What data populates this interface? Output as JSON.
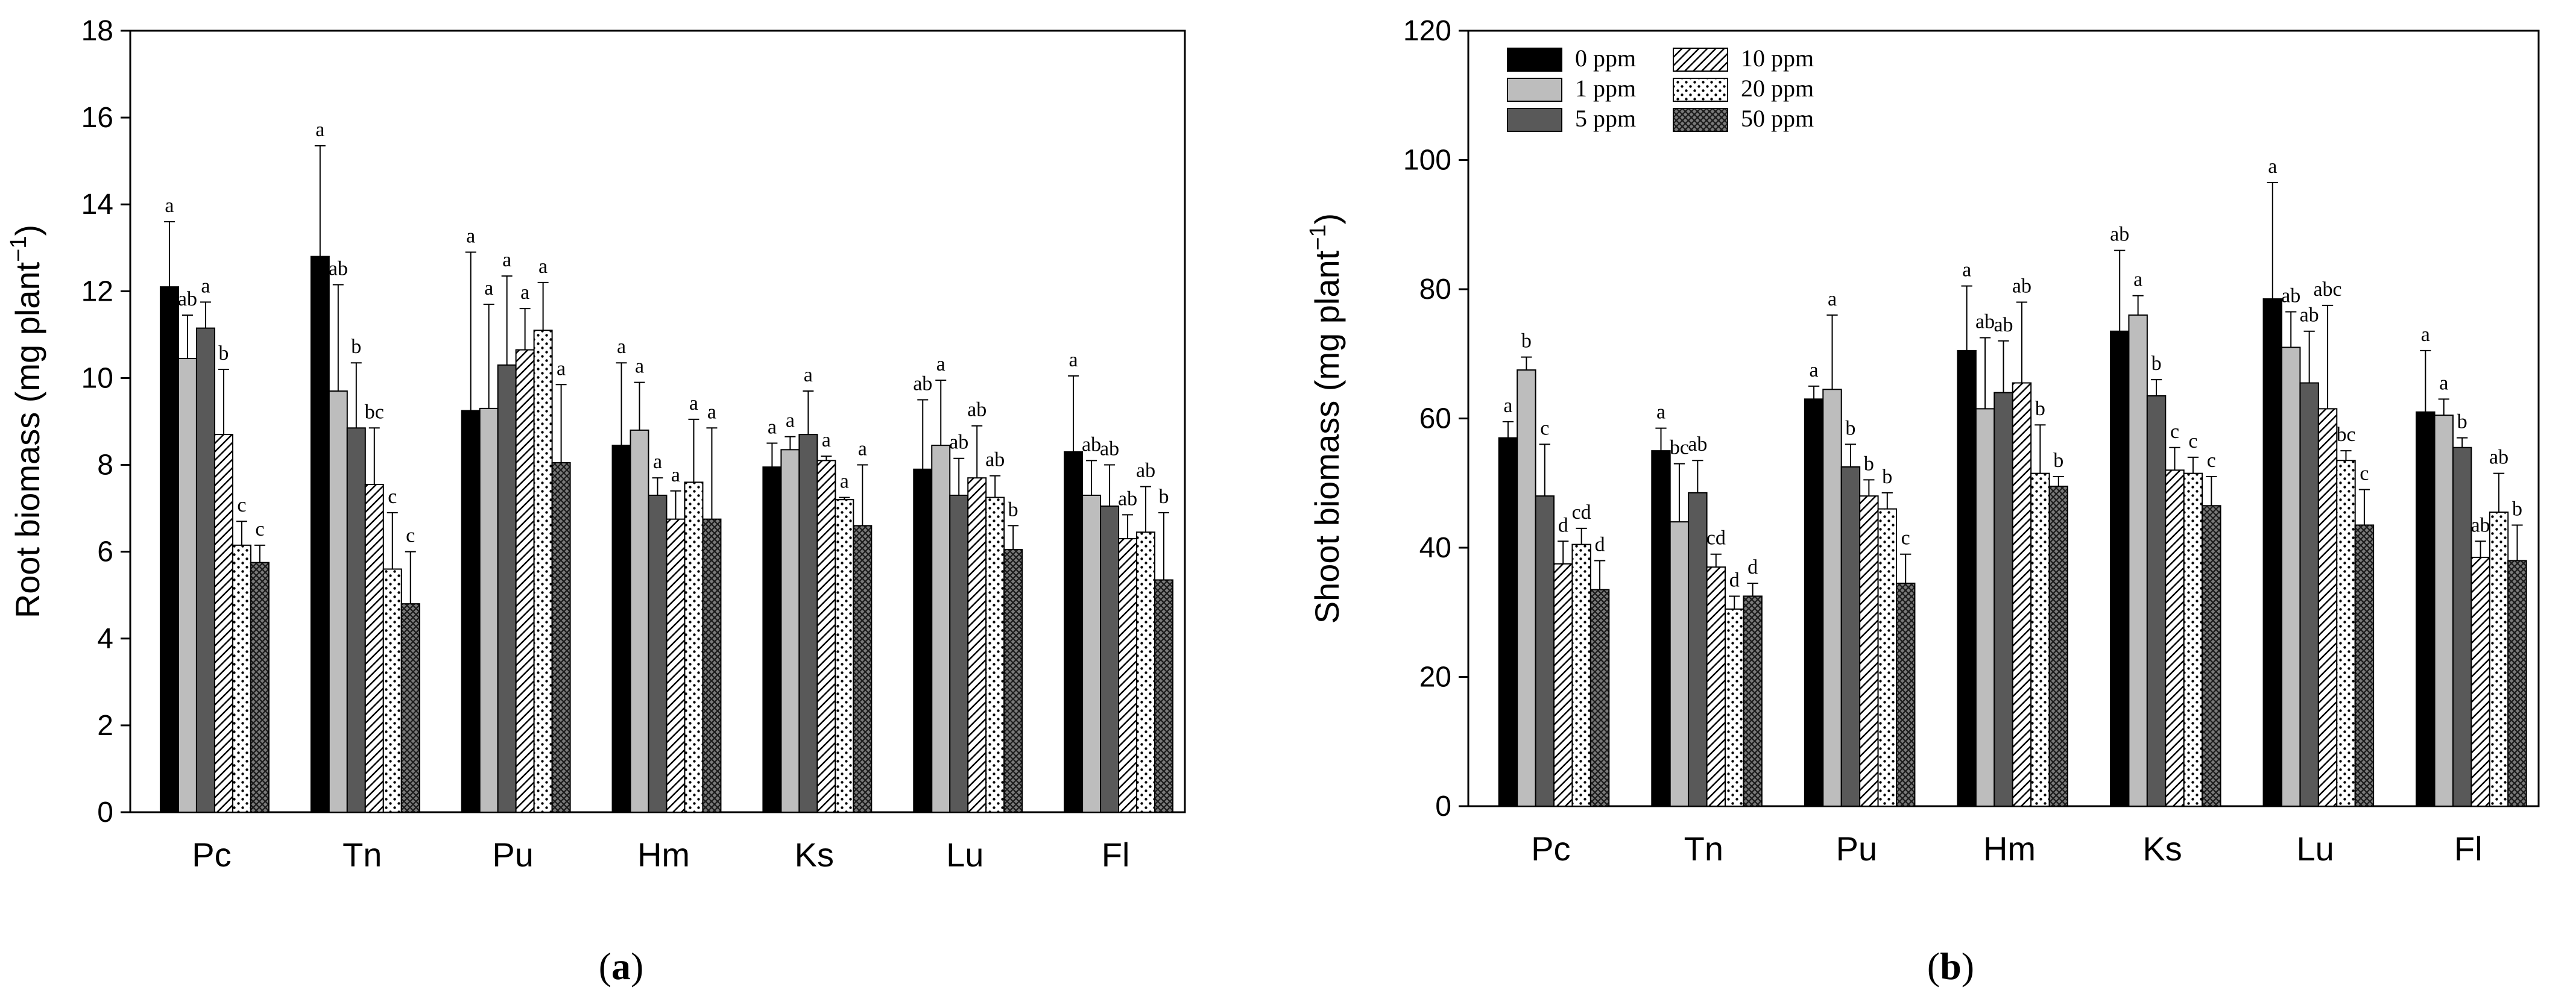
{
  "legend": [
    {
      "label": "0 ppm",
      "pattern": "black"
    },
    {
      "label": "1 ppm",
      "pattern": "lightgray"
    },
    {
      "label": "5 ppm",
      "pattern": "darkgray"
    },
    {
      "label": "10 ppm",
      "pattern": "hatch"
    },
    {
      "label": "20 ppm",
      "pattern": "dots"
    },
    {
      "label": "50 ppm",
      "pattern": "crosshatch"
    }
  ],
  "colors": {
    "black": "#000000",
    "lightgray": "#bdbdbd",
    "darkgray": "#595959",
    "hatch_bg": "#ffffff",
    "dots_bg": "#ffffff",
    "crosshatch_bg": "#7a7a7a"
  },
  "chart_data": [
    {
      "type": "bar",
      "panel": "a",
      "panel_label": {
        "open": "(",
        "letter": "a",
        "close": ")"
      },
      "ylabel": "Root biomass (mg plant",
      "ylabel_sup": "−1",
      "ylabel_close": ")",
      "ylim": [
        0,
        18
      ],
      "yticks": [
        "0",
        "2",
        "4",
        "6",
        "8",
        "10",
        "12",
        "14",
        "16",
        "18"
      ],
      "categories": [
        "Pc",
        "Tn",
        "Pu",
        "Hm",
        "Ks",
        "Lu",
        "Fl"
      ],
      "series": [
        {
          "name": "0 ppm",
          "values": [
            12.1,
            12.8,
            9.25,
            8.45,
            7.95,
            7.9,
            8.3
          ],
          "errors": [
            1.5,
            2.55,
            3.65,
            1.9,
            0.55,
            1.6,
            1.75
          ],
          "letters": [
            "a",
            "a",
            "a",
            "a",
            "a",
            "ab",
            "a"
          ]
        },
        {
          "name": "1 ppm",
          "values": [
            10.45,
            9.7,
            9.3,
            8.8,
            8.35,
            8.45,
            7.3
          ],
          "errors": [
            1.0,
            2.45,
            2.4,
            1.1,
            0.3,
            1.5,
            0.8
          ],
          "letters": [
            "ab",
            "ab",
            "a",
            "a",
            "a",
            "a",
            "ab"
          ]
        },
        {
          "name": "5 ppm",
          "values": [
            11.15,
            8.85,
            10.3,
            7.3,
            8.7,
            7.3,
            7.05
          ],
          "errors": [
            0.6,
            1.5,
            2.05,
            0.4,
            1.0,
            0.85,
            0.95
          ],
          "letters": [
            "a",
            "b",
            "a",
            "a",
            "a",
            "ab",
            "ab"
          ]
        },
        {
          "name": "10 ppm",
          "values": [
            8.7,
            7.55,
            10.65,
            6.75,
            8.1,
            7.7,
            6.3
          ],
          "errors": [
            1.5,
            1.3,
            0.95,
            0.65,
            0.1,
            1.2,
            0.55
          ],
          "letters": [
            "b",
            "bc",
            "a",
            "a",
            "a",
            "ab",
            "ab"
          ]
        },
        {
          "name": "20 ppm",
          "values": [
            6.15,
            5.6,
            11.1,
            7.6,
            7.2,
            7.25,
            6.45
          ],
          "errors": [
            0.55,
            1.3,
            1.1,
            1.45,
            0.05,
            0.5,
            1.05
          ],
          "letters": [
            "c",
            "c",
            "a",
            "a",
            "a",
            "ab",
            "ab"
          ]
        },
        {
          "name": "50 ppm",
          "values": [
            5.75,
            4.8,
            8.05,
            6.75,
            6.6,
            6.05,
            5.35
          ],
          "errors": [
            0.4,
            1.2,
            1.8,
            2.1,
            1.4,
            0.55,
            1.55
          ],
          "letters": [
            "c",
            "c",
            "a",
            "a",
            "a",
            "b",
            "b"
          ]
        }
      ]
    },
    {
      "type": "bar",
      "panel": "b",
      "panel_label": {
        "open": "(",
        "letter": "b",
        "close": ")"
      },
      "ylabel": "Shoot biomass (mg plant",
      "ylabel_sup": "−1",
      "ylabel_close": ")",
      "ylim": [
        0,
        120
      ],
      "yticks": [
        "0",
        "20",
        "40",
        "60",
        "80",
        "100",
        "120"
      ],
      "categories": [
        "Pc",
        "Tn",
        "Pu",
        "Hm",
        "Ks",
        "Lu",
        "Fl"
      ],
      "series": [
        {
          "name": "0 ppm",
          "values": [
            57,
            55,
            63,
            70.5,
            73.5,
            78.5,
            61
          ],
          "errors": [
            2.5,
            3.5,
            2,
            10,
            12.5,
            18,
            9.5
          ],
          "letters": [
            "a",
            "a",
            "a",
            "a",
            "ab",
            "a",
            "a"
          ]
        },
        {
          "name": "1 ppm",
          "values": [
            67.5,
            44,
            64.5,
            61.5,
            76,
            71,
            60.5
          ],
          "errors": [
            2,
            9,
            11.5,
            11,
            3,
            5.5,
            2.5
          ],
          "letters": [
            "b",
            "bc",
            "a",
            "ab",
            "a",
            "ab",
            "a"
          ]
        },
        {
          "name": "5 ppm",
          "values": [
            48,
            48.5,
            52.5,
            64,
            63.5,
            65.5,
            55.5
          ],
          "errors": [
            8,
            5,
            3.5,
            8,
            2.5,
            8,
            1.5
          ],
          "letters": [
            "c",
            "ab",
            "b",
            "ab",
            "b",
            "ab",
            "b"
          ]
        },
        {
          "name": "10 ppm",
          "values": [
            37.5,
            37,
            48,
            65.5,
            52,
            61.5,
            38.5
          ],
          "errors": [
            3.5,
            2,
            2.5,
            12.5,
            3.5,
            16,
            2.5
          ],
          "letters": [
            "d",
            "cd",
            "b",
            "ab",
            "c",
            "abc",
            "ab"
          ]
        },
        {
          "name": "20 ppm",
          "values": [
            40.5,
            30.5,
            46,
            51.5,
            51.5,
            53.5,
            45.5
          ],
          "errors": [
            2.5,
            2,
            2.5,
            7.5,
            2.5,
            1.5,
            6
          ],
          "letters": [
            "cd",
            "d",
            "b",
            "b",
            "c",
            "bc",
            "ab"
          ]
        },
        {
          "name": "50 ppm",
          "values": [
            33.5,
            32.5,
            34.5,
            49.5,
            46.5,
            43.5,
            38
          ],
          "errors": [
            4.5,
            2,
            4.5,
            1.5,
            4.5,
            5.5,
            5.5
          ],
          "letters": [
            "d",
            "d",
            "c",
            "b",
            "c",
            "c",
            "b"
          ]
        }
      ]
    }
  ]
}
